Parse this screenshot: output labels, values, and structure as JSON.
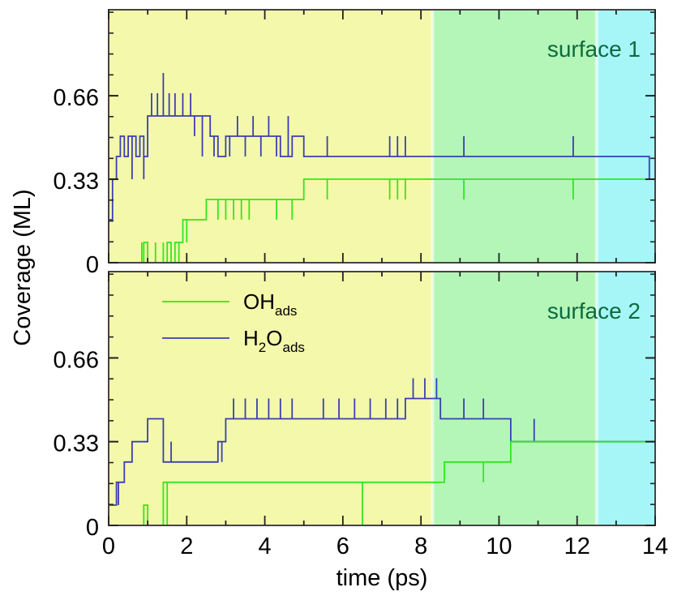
{
  "chart_data": {
    "type": "line",
    "xlabel": "time (ps)",
    "ylabel": "Coverage (ML)",
    "xlim": [
      0,
      14
    ],
    "ylim": [
      0,
      1.0
    ],
    "x_ticks": [
      0,
      2,
      4,
      6,
      8,
      10,
      12,
      14
    ],
    "y_ticks": [
      0,
      0.33,
      0.66
    ],
    "y_tick_labels": [
      "0",
      "0.33",
      "0.66"
    ],
    "background_regions": [
      {
        "x_start": 0,
        "x_end": 8.3,
        "color": "#f4f8aa"
      },
      {
        "x_start": 8.3,
        "x_end": 12.5,
        "color": "#b4f6b8"
      },
      {
        "x_start": 12.5,
        "x_end": 14,
        "color": "#a6f6f8"
      }
    ],
    "legend": [
      {
        "label": "OH",
        "sub": "ads",
        "color": "#33e61f"
      },
      {
        "label": "H",
        "sub2": "2",
        "label2": "O",
        "sub": "ads",
        "color": "#3b3fb0"
      }
    ],
    "panels": [
      {
        "title": "surface 1",
        "series": [
          {
            "name": "H2Oads",
            "color": "#3b3fb0",
            "steps": [
              [
                0,
                0.17
              ],
              [
                0.1,
                0.33
              ],
              [
                0.2,
                0.42
              ],
              [
                0.3,
                0.5
              ],
              [
                0.4,
                0.42
              ],
              [
                0.5,
                0.5
              ],
              [
                0.7,
                0.42
              ],
              [
                0.8,
                0.5
              ],
              [
                0.9,
                0.42
              ],
              [
                1.0,
                0.58
              ],
              [
                1.4,
                0.58
              ],
              [
                2.0,
                0.58
              ],
              [
                2.6,
                0.5
              ],
              [
                2.8,
                0.42
              ],
              [
                3.0,
                0.5
              ],
              [
                3.6,
                0.5
              ],
              [
                4.2,
                0.5
              ],
              [
                4.4,
                0.42
              ],
              [
                4.7,
                0.5
              ],
              [
                5.0,
                0.42
              ],
              [
                13.8,
                0.42
              ],
              [
                13.85,
                0.33
              ]
            ],
            "spikes": [
              [
                0.15,
                0.33
              ],
              [
                0.6,
                0.33
              ],
              [
                0.9,
                0.33
              ],
              [
                1.1,
                0.67
              ],
              [
                1.25,
                0.67
              ],
              [
                1.4,
                0.75
              ],
              [
                1.55,
                0.67
              ],
              [
                1.7,
                0.67
              ],
              [
                1.9,
                0.67
              ],
              [
                2.1,
                0.67
              ],
              [
                2.2,
                0.5
              ],
              [
                2.4,
                0.42
              ],
              [
                2.55,
                0.58
              ],
              [
                2.7,
                0.42
              ],
              [
                2.9,
                0.42
              ],
              [
                3.1,
                0.42
              ],
              [
                3.3,
                0.58
              ],
              [
                3.5,
                0.42
              ],
              [
                3.7,
                0.58
              ],
              [
                3.9,
                0.42
              ],
              [
                4.1,
                0.58
              ],
              [
                4.3,
                0.42
              ],
              [
                4.6,
                0.58
              ],
              [
                5.6,
                0.5
              ],
              [
                7.2,
                0.5
              ],
              [
                7.4,
                0.5
              ],
              [
                7.6,
                0.5
              ],
              [
                9.1,
                0.5
              ],
              [
                11.9,
                0.5
              ]
            ]
          },
          {
            "name": "OHads",
            "color": "#33e61f",
            "steps": [
              [
                0.8,
                0.0
              ],
              [
                0.9,
                0.08
              ],
              [
                1.0,
                0.0
              ],
              [
                1.45,
                0.0
              ],
              [
                1.5,
                0.08
              ],
              [
                1.6,
                0.0
              ],
              [
                1.7,
                0.08
              ],
              [
                1.9,
                0.17
              ],
              [
                2.5,
                0.25
              ],
              [
                4.8,
                0.25
              ],
              [
                5.0,
                0.33
              ],
              [
                14.0,
                0.33
              ]
            ],
            "spikes": [
              [
                0.85,
                0.08
              ],
              [
                1.2,
                0.08
              ],
              [
                1.4,
                0.08
              ],
              [
                1.8,
                0.0
              ],
              [
                2.0,
                0.08
              ],
              [
                2.2,
                0.17
              ],
              [
                2.8,
                0.17
              ],
              [
                3.0,
                0.17
              ],
              [
                3.2,
                0.17
              ],
              [
                3.4,
                0.17
              ],
              [
                3.6,
                0.17
              ],
              [
                4.3,
                0.17
              ],
              [
                4.7,
                0.17
              ],
              [
                5.6,
                0.25
              ],
              [
                7.2,
                0.25
              ],
              [
                7.4,
                0.25
              ],
              [
                7.6,
                0.25
              ],
              [
                9.1,
                0.25
              ],
              [
                11.9,
                0.25
              ]
            ]
          }
        ]
      },
      {
        "title": "surface 2",
        "series": [
          {
            "name": "H2Oads",
            "color": "#3b3fb0",
            "steps": [
              [
                0,
                0.08
              ],
              [
                0.2,
                0.17
              ],
              [
                0.4,
                0.25
              ],
              [
                0.6,
                0.33
              ],
              [
                0.9,
                0.33
              ],
              [
                1.0,
                0.42
              ],
              [
                1.4,
                0.25
              ],
              [
                2.8,
                0.33
              ],
              [
                3.0,
                0.42
              ],
              [
                7.6,
                0.5
              ],
              [
                8.5,
                0.42
              ],
              [
                10.3,
                0.33
              ],
              [
                14.0,
                0.33
              ]
            ],
            "spikes": [
              [
                0.25,
                0.08
              ],
              [
                0.7,
                0.33
              ],
              [
                1.2,
                0.42
              ],
              [
                1.6,
                0.33
              ],
              [
                2.9,
                0.25
              ],
              [
                3.2,
                0.5
              ],
              [
                3.5,
                0.5
              ],
              [
                3.8,
                0.5
              ],
              [
                4.1,
                0.5
              ],
              [
                4.4,
                0.5
              ],
              [
                4.7,
                0.5
              ],
              [
                5.5,
                0.5
              ],
              [
                5.9,
                0.5
              ],
              [
                6.3,
                0.5
              ],
              [
                6.7,
                0.5
              ],
              [
                7.1,
                0.5
              ],
              [
                7.4,
                0.5
              ],
              [
                7.8,
                0.58
              ],
              [
                8.1,
                0.58
              ],
              [
                8.4,
                0.58
              ],
              [
                8.8,
                0.42
              ],
              [
                9.1,
                0.5
              ],
              [
                9.6,
                0.5
              ],
              [
                10.5,
                0.33
              ],
              [
                10.9,
                0.42
              ]
            ]
          },
          {
            "name": "OHads",
            "color": "#33e61f",
            "steps": [
              [
                0.8,
                0.0
              ],
              [
                0.9,
                0.08
              ],
              [
                1.0,
                0.0
              ],
              [
                1.4,
                0.17
              ],
              [
                8.3,
                0.17
              ],
              [
                8.6,
                0.25
              ],
              [
                10.2,
                0.25
              ],
              [
                10.3,
                0.33
              ],
              [
                14.0,
                0.33
              ]
            ],
            "spikes": [
              [
                1.5,
                0.0
              ],
              [
                2.0,
                0.17
              ],
              [
                2.5,
                0.17
              ],
              [
                3.2,
                0.17
              ],
              [
                3.6,
                0.17
              ],
              [
                4.0,
                0.17
              ],
              [
                4.5,
                0.17
              ],
              [
                5.0,
                0.17
              ],
              [
                5.6,
                0.17
              ],
              [
                6.5,
                0.0
              ],
              [
                7.0,
                0.17
              ],
              [
                7.5,
                0.17
              ],
              [
                8.0,
                0.17
              ],
              [
                8.8,
                0.25
              ],
              [
                9.1,
                0.25
              ],
              [
                9.6,
                0.17
              ],
              [
                10.2,
                0.25
              ]
            ]
          }
        ]
      }
    ]
  }
}
